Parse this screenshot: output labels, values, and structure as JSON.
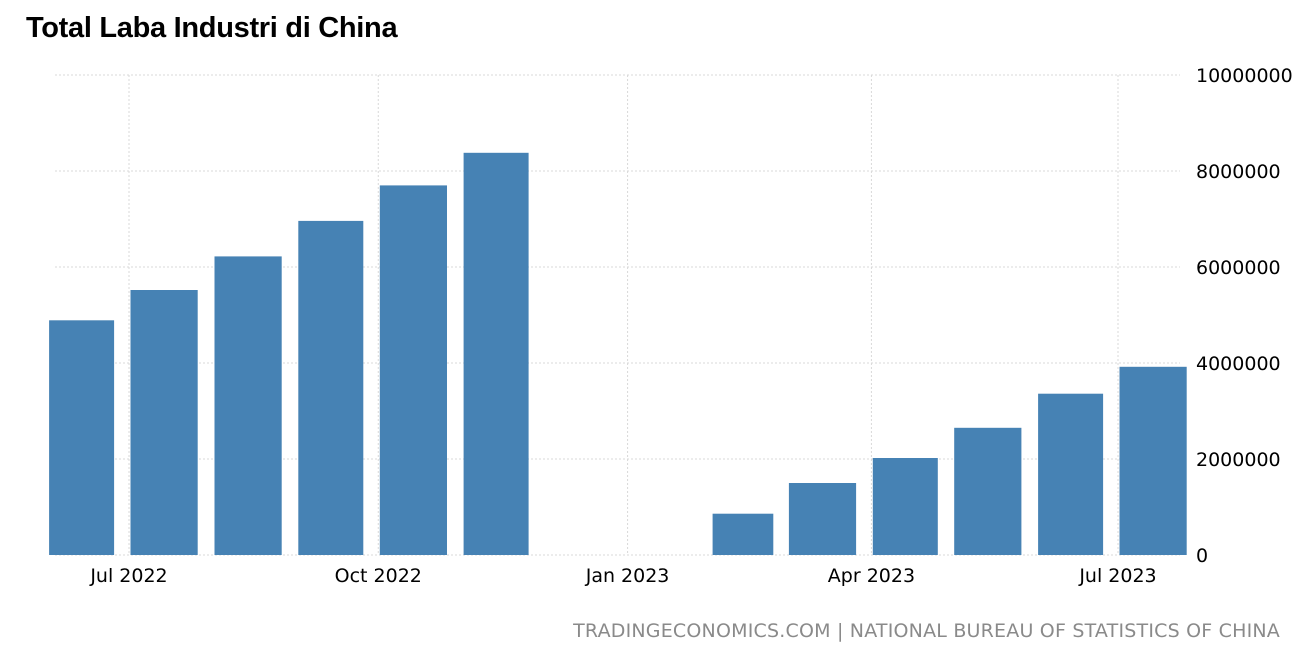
{
  "chart_data": {
    "type": "bar",
    "title": "Total Laba Industri di China",
    "source": "TRADINGECONOMICS.COM | NATIONAL BUREAU OF STATISTICS OF CHINA",
    "bar_color": "#4682b4",
    "grid_color": "#d9d9d9",
    "xlabel": "",
    "ylabel": "",
    "ylim": [
      0,
      10000000
    ],
    "grid": true,
    "y_ticks": [
      0,
      2000000,
      4000000,
      6000000,
      8000000,
      10000000
    ],
    "y_tick_labels": [
      "0",
      "2000000",
      "4000000",
      "6000000",
      "8000000",
      "10000000"
    ],
    "x_ticks": [
      {
        "label": "Jul 2022",
        "date": "2022-07-01"
      },
      {
        "label": "Oct 2022",
        "date": "2022-10-01"
      },
      {
        "label": "Jan 2023",
        "date": "2023-01-01"
      },
      {
        "label": "Apr 2023",
        "date": "2023-04-01"
      },
      {
        "label": "Jul 2023",
        "date": "2023-07-01"
      }
    ],
    "series": [
      {
        "points": [
          {
            "date": "2022-06-30",
            "value": 4890000
          },
          {
            "date": "2022-07-31",
            "value": 5520000
          },
          {
            "date": "2022-08-31",
            "value": 6220000
          },
          {
            "date": "2022-09-30",
            "value": 6960000
          },
          {
            "date": "2022-10-31",
            "value": 7700000
          },
          {
            "date": "2022-11-30",
            "value": 8380000
          },
          {
            "date": "2023-02-28",
            "value": 860000
          },
          {
            "date": "2023-03-31",
            "value": 1500000
          },
          {
            "date": "2023-04-30",
            "value": 2020000
          },
          {
            "date": "2023-05-31",
            "value": 2650000
          },
          {
            "date": "2023-06-30",
            "value": 3360000
          },
          {
            "date": "2023-07-31",
            "value": 3920000
          }
        ]
      }
    ]
  }
}
